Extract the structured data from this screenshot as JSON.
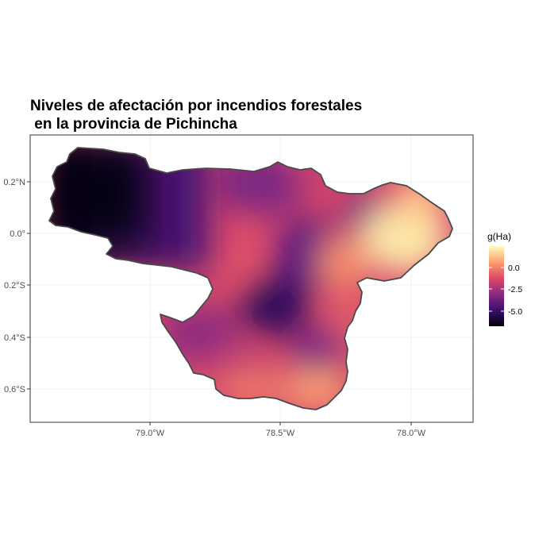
{
  "title_line1": "Niveles de afectación por incendios forestales",
  "title_line2": " en la provincia de Pichincha",
  "map": {
    "x_ticks": [
      {
        "value": -79.0,
        "label": "79.0°W"
      },
      {
        "value": -78.5,
        "label": "78.5°W"
      },
      {
        "value": -78.0,
        "label": "78.0°W"
      }
    ],
    "y_ticks": [
      {
        "value": 0.2,
        "label": "0.2°N"
      },
      {
        "value": 0.0,
        "label": "0.0°"
      },
      {
        "value": -0.2,
        "label": "0.2°S"
      },
      {
        "value": -0.4,
        "label": "0.4°S"
      },
      {
        "value": -0.6,
        "label": "0.6°S"
      }
    ],
    "legend": {
      "title": "g(Ha)",
      "palette": "magma",
      "colors": [
        "#000004",
        "#3b0f70",
        "#8c2981",
        "#de4968",
        "#fe9f6d",
        "#fcfdbf"
      ],
      "breaks": [
        {
          "value": 0.0,
          "label": "0.0"
        },
        {
          "value": -2.5,
          "label": "-2.5"
        },
        {
          "value": -5.0,
          "label": "-5.0"
        }
      ]
    },
    "border_color": "#4a4a4a",
    "grid": true
  }
}
